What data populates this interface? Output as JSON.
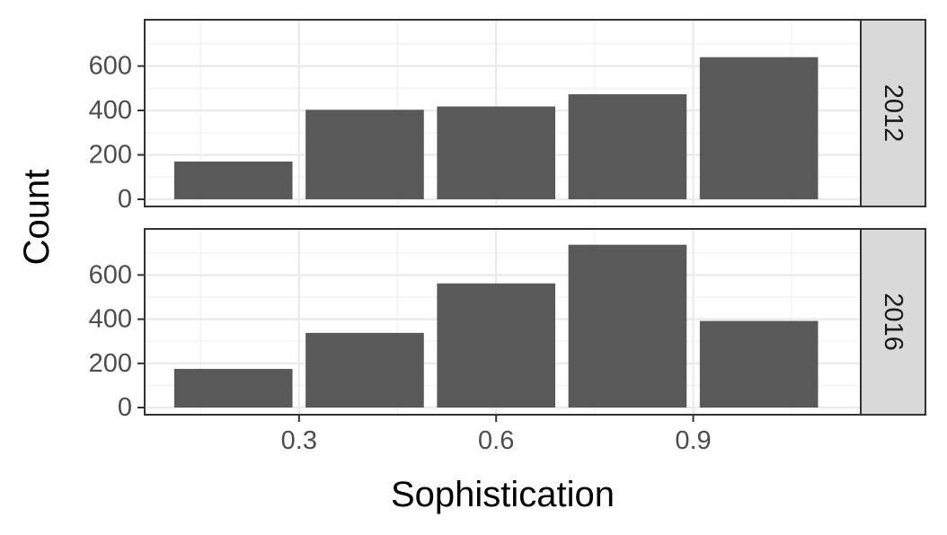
{
  "chart_data": {
    "type": "bar",
    "facet_layout": "rows",
    "xlabel": "Sophistication",
    "ylabel": "Count",
    "x_ticks": [
      0.3,
      0.6,
      0.9
    ],
    "x_tick_labels": [
      "0.3",
      "0.6",
      "0.9"
    ],
    "y_ticks": [
      0,
      200,
      400,
      600
    ],
    "y_tick_labels": [
      "0",
      "200",
      "400",
      "600"
    ],
    "ylim": [
      0,
      760
    ],
    "xlim": [
      0.065,
      1.155
    ],
    "bin_width": 0.2,
    "bar_color": "#595959",
    "grid": true,
    "panels": [
      {
        "strip_label": "2012",
        "bins": [
          0.2,
          0.4,
          0.6,
          0.8,
          1.0
        ],
        "values": [
          170,
          403,
          418,
          473,
          640
        ]
      },
      {
        "strip_label": "2016",
        "bins": [
          0.2,
          0.4,
          0.6,
          0.8,
          1.0
        ],
        "values": [
          175,
          338,
          562,
          737,
          392
        ]
      }
    ]
  }
}
